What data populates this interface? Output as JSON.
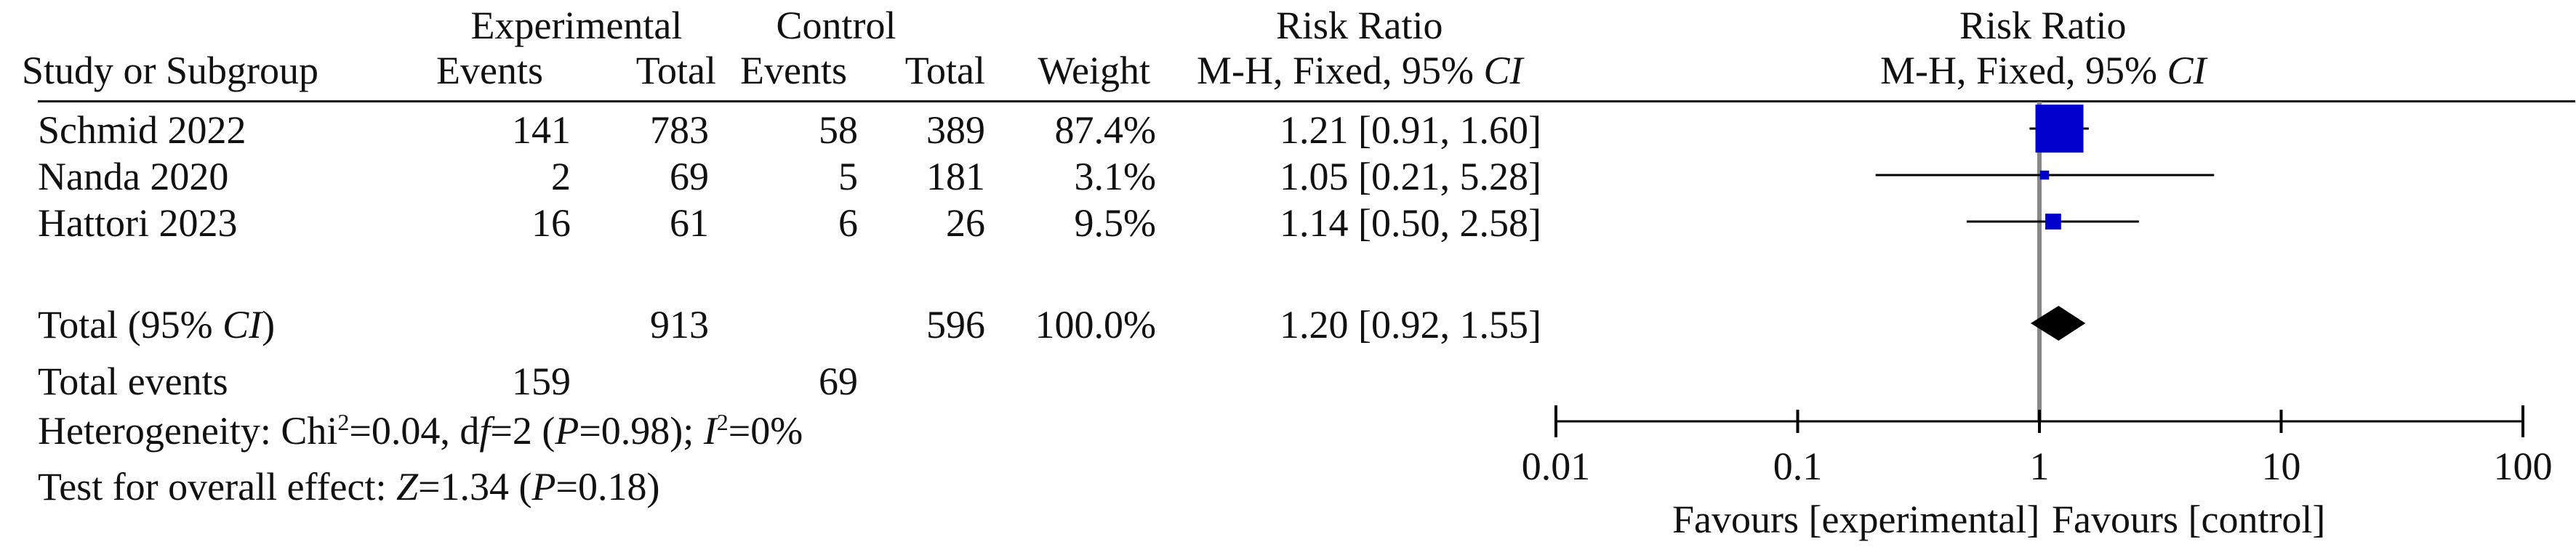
{
  "headers": {
    "study": "Study or Subgroup",
    "exp_group": "Experimental",
    "exp_events": "Events",
    "exp_total": "Total",
    "ctl_group": "Control",
    "ctl_events": "Events",
    "ctl_total": "Total",
    "weight": "Weight",
    "rr_title": "Risk Ratio",
    "rr_method_prefix": "M-H, Fixed, 95% ",
    "rr_method_ci": "CI",
    "plot_title": "Risk Ratio",
    "plot_method_prefix": "M-H, Fixed, 95% ",
    "plot_method_ci": "CI"
  },
  "studies": [
    {
      "name": "Schmid 2022",
      "exp_events": "141",
      "exp_total": "783",
      "ctl_events": "58",
      "ctl_total": "389",
      "weight": "87.4%",
      "rr_text": "1.21 [0.91, 1.60]"
    },
    {
      "name": "Nanda 2020",
      "exp_events": "2",
      "exp_total": "69",
      "ctl_events": "5",
      "ctl_total": "181",
      "weight": "3.1%",
      "rr_text": "1.05 [0.21, 5.28]"
    },
    {
      "name": "Hattori 2023",
      "exp_events": "16",
      "exp_total": "61",
      "ctl_events": "6",
      "ctl_total": "26",
      "weight": "9.5%",
      "rr_text": "1.14 [0.50, 2.58]"
    }
  ],
  "total": {
    "label_prefix": "Total (95% ",
    "label_ci": "CI",
    "label_suffix": ")",
    "exp_total": "913",
    "ctl_total": "596",
    "weight": "100.0%",
    "rr_text": "1.20 [0.92, 1.55]"
  },
  "events": {
    "label": "Total events",
    "exp": "159",
    "ctl": "69"
  },
  "heterogeneity": {
    "p1": "Heterogeneity: Chi",
    "sup2": "2",
    "p2": "=0.04, d",
    "df_it": "f",
    "p3": "=2 (",
    "p_it": "P",
    "p4": "=0.98); ",
    "i_it": "I",
    "sup2b": "2",
    "p5": "=0%"
  },
  "overall": {
    "p1": "Test for overall effect: ",
    "z_it": "Z",
    "p2": "=1.34 (",
    "p_it": "P",
    "p3": "=0.18)"
  },
  "favours": {
    "left": "Favours [experimental]",
    "right": "Favours [control]"
  },
  "colors": {
    "study_marker": "#0000cc",
    "diamond": "#000000",
    "line": "#000000",
    "null_line": "#888888"
  },
  "chart_data": {
    "type": "forest",
    "x_scale": "log",
    "xlim": [
      0.01,
      100
    ],
    "ticks": [
      0.01,
      0.1,
      1,
      10,
      100
    ],
    "tick_labels": [
      "0.01",
      "0.1",
      "1",
      "10",
      "100"
    ],
    "null_value": 1,
    "studies": [
      {
        "name": "Schmid 2022",
        "rr": 1.21,
        "lower": 0.91,
        "upper": 1.6,
        "weight": 87.4
      },
      {
        "name": "Nanda 2020",
        "rr": 1.05,
        "lower": 0.21,
        "upper": 5.28,
        "weight": 3.1
      },
      {
        "name": "Hattori 2023",
        "rr": 1.14,
        "lower": 0.5,
        "upper": 2.58,
        "weight": 9.5
      }
    ],
    "pooled": {
      "rr": 1.2,
      "lower": 0.92,
      "upper": 1.55
    }
  }
}
